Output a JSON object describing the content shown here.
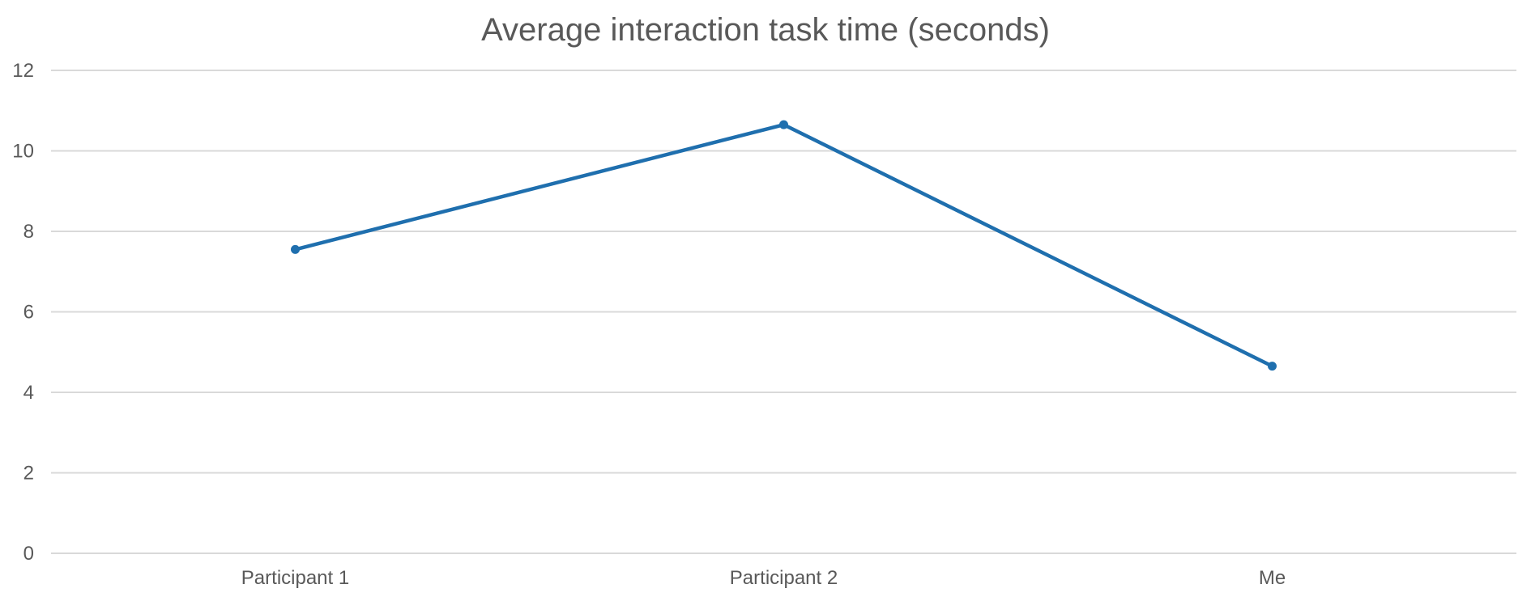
{
  "chart_data": {
    "type": "line",
    "title": "Average interaction task time (seconds)",
    "xlabel": "",
    "ylabel": "",
    "categories": [
      "Participant 1",
      "Participant 2",
      "Me"
    ],
    "series": [
      {
        "values": [
          7.55,
          10.65,
          4.65
        ],
        "color": "#1f6fae"
      }
    ],
    "ylim": [
      0,
      12
    ],
    "yticks": [
      0,
      2,
      4,
      6,
      8,
      10,
      12
    ],
    "grid": true,
    "legend": "none",
    "markers": true
  }
}
